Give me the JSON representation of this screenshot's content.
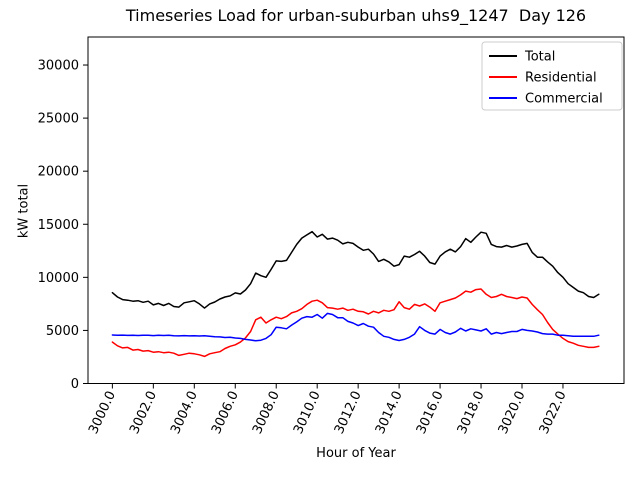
{
  "figure": {
    "background": "#ffffff"
  },
  "chart_data": {
    "type": "line",
    "title": "Timeseries Load for urban-suburban uhs9_1247  Day 126",
    "xlabel": "Hour of Year",
    "ylabel": "kW total",
    "grid": false,
    "xlim": [
      2998.81,
      3024.98
    ],
    "ylim": [
      0,
      32640
    ],
    "x_start": 3000.0,
    "x_step": 0.25,
    "x_ticks": {
      "values": [
        3000,
        3002,
        3004,
        3006,
        3008,
        3010,
        3012,
        3014,
        3016,
        3018,
        3020,
        3022
      ],
      "labels": [
        "3000.0",
        "3002.0",
        "3004.0",
        "3006.0",
        "3008.0",
        "3010.0",
        "3012.0",
        "3014.0",
        "3016.0",
        "3018.0",
        "3020.0",
        "3022.0"
      ],
      "rotation_deg": 65
    },
    "y_ticks": {
      "values": [
        0,
        5000,
        10000,
        15000,
        20000,
        25000,
        30000
      ],
      "labels": [
        "0",
        "5000",
        "10000",
        "15000",
        "20000",
        "25000",
        "30000"
      ]
    },
    "legend": {
      "position": "upper right",
      "edge_color": "#cccccc"
    },
    "series": [
      {
        "name": "Total",
        "color": "#000000",
        "values": [
          8550,
          8150,
          7900,
          7850,
          7750,
          7800,
          7650,
          7750,
          7400,
          7550,
          7350,
          7550,
          7250,
          7200,
          7600,
          7700,
          7800,
          7500,
          7100,
          7500,
          7680,
          7960,
          8150,
          8250,
          8530,
          8430,
          8810,
          9400,
          10400,
          10150,
          10000,
          10750,
          11550,
          11500,
          11600,
          12350,
          13100,
          13700,
          14000,
          14300,
          13800,
          14050,
          13600,
          13700,
          13500,
          13150,
          13300,
          13200,
          12850,
          12550,
          12650,
          12200,
          11500,
          11700,
          11450,
          11050,
          11200,
          12000,
          11900,
          12150,
          12450,
          12000,
          11400,
          11250,
          12000,
          12400,
          12650,
          12400,
          12900,
          13650,
          13300,
          13800,
          14250,
          14150,
          13100,
          12900,
          12850,
          13000,
          12850,
          12950,
          13100,
          13200,
          12350,
          11900,
          11900,
          11450,
          11050,
          10450,
          10000,
          9400,
          9050,
          8700,
          8550,
          8200,
          8100,
          8400
        ]
      },
      {
        "name": "Residential",
        "color": "#ff0000",
        "values": [
          3900,
          3550,
          3350,
          3400,
          3150,
          3200,
          3050,
          3100,
          2950,
          3000,
          2900,
          2950,
          2850,
          2650,
          2750,
          2850,
          2800,
          2700,
          2550,
          2800,
          2900,
          3000,
          3300,
          3500,
          3650,
          3900,
          4300,
          4900,
          6000,
          6250,
          5700,
          6000,
          6250,
          6100,
          6300,
          6650,
          6800,
          7050,
          7450,
          7750,
          7850,
          7600,
          7150,
          7100,
          7000,
          7100,
          6900,
          7000,
          6800,
          6750,
          6550,
          6800,
          6650,
          6900,
          6800,
          6950,
          7700,
          7150,
          7000,
          7450,
          7300,
          7500,
          7200,
          6800,
          7600,
          7750,
          7900,
          8050,
          8350,
          8700,
          8600,
          8850,
          8900,
          8400,
          8100,
          8200,
          8400,
          8200,
          8100,
          8000,
          8150,
          8050,
          7450,
          6950,
          6500,
          5750,
          5100,
          4650,
          4250,
          3950,
          3800,
          3600,
          3500,
          3400,
          3400,
          3500
        ]
      },
      {
        "name": "Commercial",
        "color": "#0000ff",
        "values": [
          4570,
          4540,
          4560,
          4530,
          4550,
          4520,
          4540,
          4550,
          4510,
          4540,
          4520,
          4540,
          4500,
          4480,
          4510,
          4480,
          4500,
          4470,
          4490,
          4450,
          4400,
          4390,
          4330,
          4350,
          4290,
          4250,
          4150,
          4100,
          4020,
          4080,
          4250,
          4600,
          5300,
          5250,
          5150,
          5500,
          5800,
          6150,
          6300,
          6250,
          6500,
          6150,
          6600,
          6500,
          6200,
          6200,
          5850,
          5700,
          5450,
          5650,
          5400,
          5300,
          4800,
          4450,
          4350,
          4150,
          4050,
          4150,
          4350,
          4650,
          5350,
          5000,
          4750,
          4650,
          5100,
          4800,
          4650,
          4850,
          5200,
          4950,
          5150,
          5050,
          4950,
          5150,
          4650,
          4800,
          4700,
          4800,
          4900,
          4900,
          5100,
          5000,
          4950,
          4850,
          4700,
          4650,
          4650,
          4550,
          4550,
          4500,
          4450,
          4450,
          4450,
          4450,
          4450,
          4550
        ]
      }
    ]
  }
}
